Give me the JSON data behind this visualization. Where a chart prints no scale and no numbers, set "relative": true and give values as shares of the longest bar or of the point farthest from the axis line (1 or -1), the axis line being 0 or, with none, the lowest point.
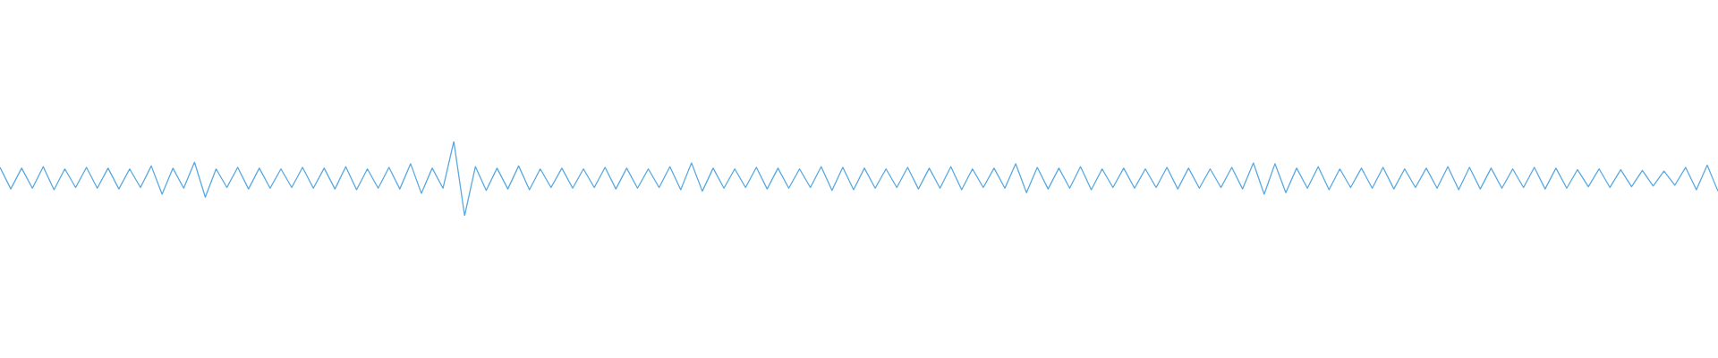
{
  "chart_data": {
    "type": "line",
    "relative": true,
    "legend": false,
    "marker": "none",
    "categories": [
      null,
      null,
      null,
      null,
      null,
      null,
      null,
      null,
      null,
      null,
      null,
      null,
      null,
      null,
      null,
      null,
      null,
      null,
      null,
      null,
      null,
      null,
      null,
      null,
      null,
      null,
      null,
      null,
      null,
      null,
      null,
      null,
      null,
      null,
      null,
      null,
      null,
      null,
      null,
      null,
      null,
      null,
      null,
      null,
      null,
      null,
      null,
      null,
      null,
      null,
      null,
      null,
      null,
      null,
      null,
      null,
      null,
      null,
      null,
      null,
      null,
      null,
      null,
      null,
      null,
      null,
      null,
      null,
      null,
      null,
      null,
      null,
      null,
      null,
      null,
      null,
      null,
      null,
      null,
      null,
      null,
      null,
      null,
      null,
      null,
      null,
      null,
      null,
      null,
      null,
      null,
      null,
      null,
      null,
      null,
      null,
      null,
      null,
      null,
      null,
      null,
      null,
      null,
      null,
      null,
      null,
      null,
      null,
      null,
      null,
      null,
      null,
      null,
      null,
      null,
      null,
      null,
      null,
      null,
      null,
      null,
      null,
      null,
      null,
      null,
      null,
      null,
      null,
      null,
      null,
      null,
      null,
      null,
      null,
      null,
      null,
      null,
      null,
      null,
      null,
      null,
      null,
      null,
      null,
      null,
      null,
      null,
      null,
      null,
      null,
      null,
      null,
      null,
      null,
      null,
      null,
      null,
      null,
      null,
      null
    ],
    "series": [
      {
        "color": "#5aa9e0",
        "values": [
          0.65,
          0.36,
          0.64,
          0.37,
          0.66,
          0.35,
          0.63,
          0.38,
          0.65,
          0.37,
          0.64,
          0.36,
          0.63,
          0.38,
          0.67,
          0.29,
          0.64,
          0.37,
          0.72,
          0.25,
          0.63,
          0.38,
          0.65,
          0.36,
          0.64,
          0.37,
          0.63,
          0.38,
          0.65,
          0.37,
          0.64,
          0.36,
          0.66,
          0.35,
          0.63,
          0.37,
          0.65,
          0.36,
          0.7,
          0.3,
          0.64,
          0.37,
          1,
          0,
          0.66,
          0.34,
          0.64,
          0.36,
          0.67,
          0.35,
          0.63,
          0.38,
          0.64,
          0.37,
          0.63,
          0.38,
          0.65,
          0.36,
          0.64,
          0.37,
          0.63,
          0.38,
          0.66,
          0.35,
          0.71,
          0.33,
          0.64,
          0.37,
          0.63,
          0.38,
          0.65,
          0.36,
          0.64,
          0.37,
          0.63,
          0.38,
          0.66,
          0.34,
          0.65,
          0.35,
          0.64,
          0.37,
          0.63,
          0.38,
          0.65,
          0.36,
          0.64,
          0.37,
          0.66,
          0.35,
          0.63,
          0.38,
          0.64,
          0.37,
          0.7,
          0.31,
          0.65,
          0.36,
          0.64,
          0.37,
          0.66,
          0.35,
          0.63,
          0.38,
          0.64,
          0.37,
          0.63,
          0.38,
          0.65,
          0.36,
          0.64,
          0.37,
          0.63,
          0.38,
          0.65,
          0.36,
          0.71,
          0.29,
          0.7,
          0.31,
          0.64,
          0.37,
          0.66,
          0.35,
          0.63,
          0.38,
          0.64,
          0.37,
          0.65,
          0.36,
          0.63,
          0.38,
          0.64,
          0.37,
          0.66,
          0.35,
          0.65,
          0.36,
          0.64,
          0.37,
          0.63,
          0.38,
          0.65,
          0.36,
          0.64,
          0.37,
          0.62,
          0.39,
          0.63,
          0.38,
          0.62,
          0.39,
          0.61,
          0.4,
          0.6,
          0.41,
          0.65,
          0.35,
          0.68,
          0.33
        ]
      }
    ]
  }
}
